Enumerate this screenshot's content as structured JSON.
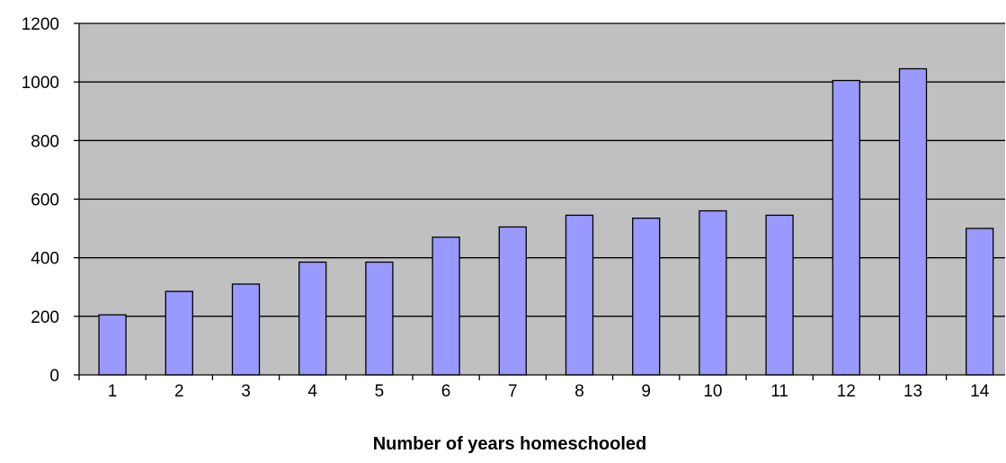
{
  "chart_data": {
    "type": "bar",
    "title": "",
    "xlabel": "Number of years homeschooled",
    "ylabel": "",
    "categories": [
      "1",
      "2",
      "3",
      "4",
      "5",
      "6",
      "7",
      "8",
      "9",
      "10",
      "11",
      "12",
      "13",
      "14"
    ],
    "values": [
      205,
      285,
      310,
      385,
      385,
      470,
      505,
      545,
      535,
      560,
      545,
      1005,
      1045,
      500
    ],
    "ylim": [
      0,
      1200
    ],
    "yticks": [
      "0",
      "200",
      "400",
      "600",
      "800",
      "1000",
      "1200"
    ],
    "grid": true,
    "legend": "none",
    "colors": {
      "plot_background": "#c0c0c0",
      "bar_fill": "#9999ff",
      "bar_stroke": "#000000",
      "gridline": "#000000"
    }
  }
}
